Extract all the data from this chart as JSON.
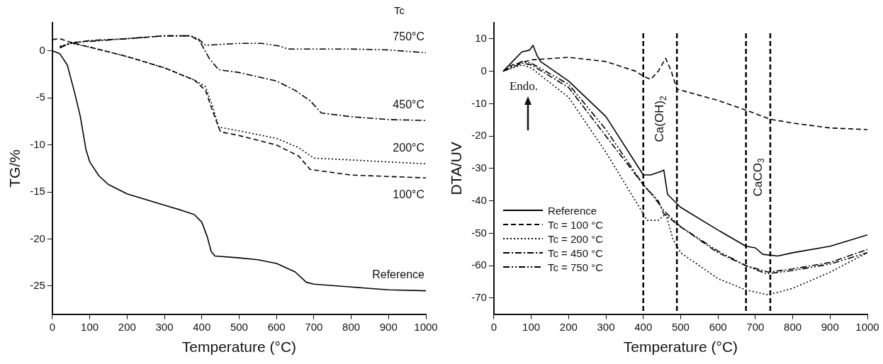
{
  "chart_data": [
    {
      "type": "line",
      "xlabel": "Temperature (°C)",
      "ylabel": "TG/%",
      "xlim": [
        0,
        1000
      ],
      "xticks": [
        0,
        100,
        200,
        300,
        400,
        500,
        600,
        700,
        800,
        900,
        1000
      ],
      "ylim": [
        -28,
        3
      ],
      "yticks": [
        -25,
        -20,
        -15,
        -10,
        -5,
        0
      ],
      "grid": false,
      "legend": false,
      "annotations": [
        "Tc"
      ],
      "series": [
        {
          "name": "Reference",
          "color": "#000000",
          "line_style": "solid",
          "x": [
            0,
            20,
            40,
            60,
            75,
            90,
            100,
            125,
            150,
            200,
            250,
            300,
            350,
            380,
            400,
            415,
            425,
            435,
            500,
            550,
            600,
            650,
            680,
            700,
            800,
            900,
            1000
          ],
          "values": [
            0,
            -0.3,
            -1.5,
            -4.5,
            -7,
            -10.5,
            -11.8,
            -13.3,
            -14.2,
            -15.2,
            -15.8,
            -16.4,
            -17,
            -17.4,
            -18.2,
            -19.8,
            -21.3,
            -21.8,
            -22,
            -22.2,
            -22.6,
            -23.5,
            -24.6,
            -24.8,
            -25.1,
            -25.4,
            -25.5
          ]
        },
        {
          "name": "100°C",
          "color": "#000000",
          "line_style": "dashed",
          "x": [
            0,
            20,
            50,
            100,
            200,
            300,
            380,
            410,
            430,
            450,
            500,
            600,
            660,
            690,
            800,
            1000
          ],
          "values": [
            1.2,
            1.3,
            0.9,
            0.4,
            -0.6,
            -1.8,
            -3.1,
            -4.2,
            -6.5,
            -8.6,
            -9,
            -10,
            -11.2,
            -12.6,
            -13.2,
            -13.5
          ]
        },
        {
          "name": "200°C",
          "color": "#000000",
          "line_style": "dotted",
          "x": [
            20,
            50,
            100,
            200,
            300,
            380,
            410,
            430,
            445,
            500,
            600,
            660,
            700,
            800,
            1000
          ],
          "values": [
            0.5,
            0.8,
            0.4,
            -0.6,
            -1.8,
            -3.1,
            -3.8,
            -6,
            -8.1,
            -8.5,
            -9.3,
            -10.3,
            -11.4,
            -11.6,
            -12
          ]
        },
        {
          "name": "450°C",
          "color": "#000000",
          "line_style": "dashdot",
          "x": [
            20,
            50,
            100,
            200,
            300,
            370,
            395,
            420,
            445,
            500,
            600,
            650,
            690,
            720,
            800,
            900,
            1000
          ],
          "values": [
            0.4,
            0.8,
            1.1,
            1.3,
            1.6,
            1.6,
            1,
            -0.8,
            -2,
            -2.3,
            -3.2,
            -4.2,
            -5.3,
            -6.6,
            -7,
            -7.3,
            -7.4
          ]
        },
        {
          "name": "750°C",
          "color": "#000000",
          "line_style": "dashdotdot",
          "x": [
            20,
            50,
            100,
            200,
            300,
            370,
            390,
            410,
            500,
            560,
            610,
            630,
            800,
            900,
            1000
          ],
          "values": [
            0.3,
            0.9,
            1,
            1.3,
            1.6,
            1.6,
            1.3,
            0.6,
            0.8,
            0.8,
            0.5,
            0.2,
            0.2,
            0.1,
            -0.2
          ]
        }
      ]
    },
    {
      "type": "line",
      "xlabel": "Temperature (°C)",
      "ylabel": "DTA/UV",
      "xlim": [
        0,
        1000
      ],
      "xticks": [
        0,
        100,
        200,
        300,
        400,
        500,
        600,
        700,
        800,
        900,
        1000
      ],
      "ylim": [
        -75,
        15
      ],
      "yticks": [
        -70,
        -60,
        -50,
        -40,
        -30,
        -20,
        -10,
        0,
        10
      ],
      "grid": false,
      "legend": "bottom left",
      "ref_lines": [
        {
          "axis": "x",
          "value": 400,
          "color": "#000000",
          "line_style": "dashed"
        },
        {
          "axis": "x",
          "value": 490,
          "color": "#000000",
          "line_style": "dashed"
        },
        {
          "axis": "x",
          "value": 675,
          "color": "#000000",
          "line_style": "dashed"
        },
        {
          "axis": "x",
          "value": 740,
          "color": "#000000",
          "line_style": "dashed"
        }
      ],
      "annotations": [
        "Endo.",
        "Ca(OH)$_{2}$",
        "CaCO$_{3}$"
      ],
      "series": [
        {
          "name": "Reference",
          "color": "#000000",
          "line_style": "solid",
          "x": [
            25,
            50,
            75,
            95,
            105,
            115,
            125,
            200,
            300,
            400,
            420,
            445,
            455,
            465,
            500,
            600,
            675,
            700,
            720,
            760,
            800,
            900,
            1000
          ],
          "values": [
            0,
            3,
            6,
            6.5,
            8,
            5,
            3,
            -3,
            -14,
            -32,
            -32,
            -31,
            -30.5,
            -38,
            -42,
            -49,
            -54,
            -54.5,
            -56.5,
            -57,
            -56,
            -54,
            -50.5
          ]
        },
        {
          "name": "Tc = 100 °C",
          "color": "#000000",
          "line_style": "dashed",
          "x": [
            25,
            50,
            100,
            200,
            300,
            380,
            400,
            420,
            440,
            460,
            475,
            490,
            600,
            675,
            740,
            800,
            900,
            1000
          ],
          "values": [
            0,
            2,
            3.5,
            4.3,
            3,
            0,
            -1.5,
            -2.5,
            0,
            4,
            0,
            -5.5,
            -9,
            -12,
            -14.8,
            -16,
            -17.5,
            -18
          ]
        },
        {
          "name": "Tc = 200 °C",
          "color": "#000000",
          "line_style": "dotted",
          "x": [
            25,
            75,
            100,
            200,
            300,
            400,
            410,
            440,
            460,
            480,
            500,
            600,
            675,
            735,
            800,
            900,
            1000
          ],
          "values": [
            0,
            2,
            1,
            -8,
            -25,
            -44,
            -46,
            -46,
            -44,
            -52,
            -56,
            -64,
            -67.5,
            -69,
            -67,
            -62,
            -56
          ]
        },
        {
          "name": "Tc = 450 °C",
          "color": "#000000",
          "line_style": "dashdot",
          "x": [
            25,
            75,
            100,
            200,
            300,
            400,
            440,
            455,
            500,
            600,
            675,
            735,
            800,
            900,
            1000
          ],
          "values": [
            0,
            2.5,
            2,
            -5,
            -20,
            -35,
            -40,
            -44,
            -48,
            -56,
            -60,
            -62,
            -61,
            -59,
            -55
          ]
        },
        {
          "name": "Tc = 750 °C",
          "color": "#000000",
          "line_style": "dashdotdot",
          "x": [
            25,
            75,
            100,
            200,
            300,
            400,
            430,
            455,
            500,
            600,
            675,
            730,
            800,
            900,
            1000
          ],
          "values": [
            0,
            3,
            2.5,
            -4,
            -18,
            -35,
            -39,
            -43,
            -48,
            -55.5,
            -60,
            -62.5,
            -61.5,
            -59.5,
            -56
          ]
        }
      ]
    }
  ]
}
